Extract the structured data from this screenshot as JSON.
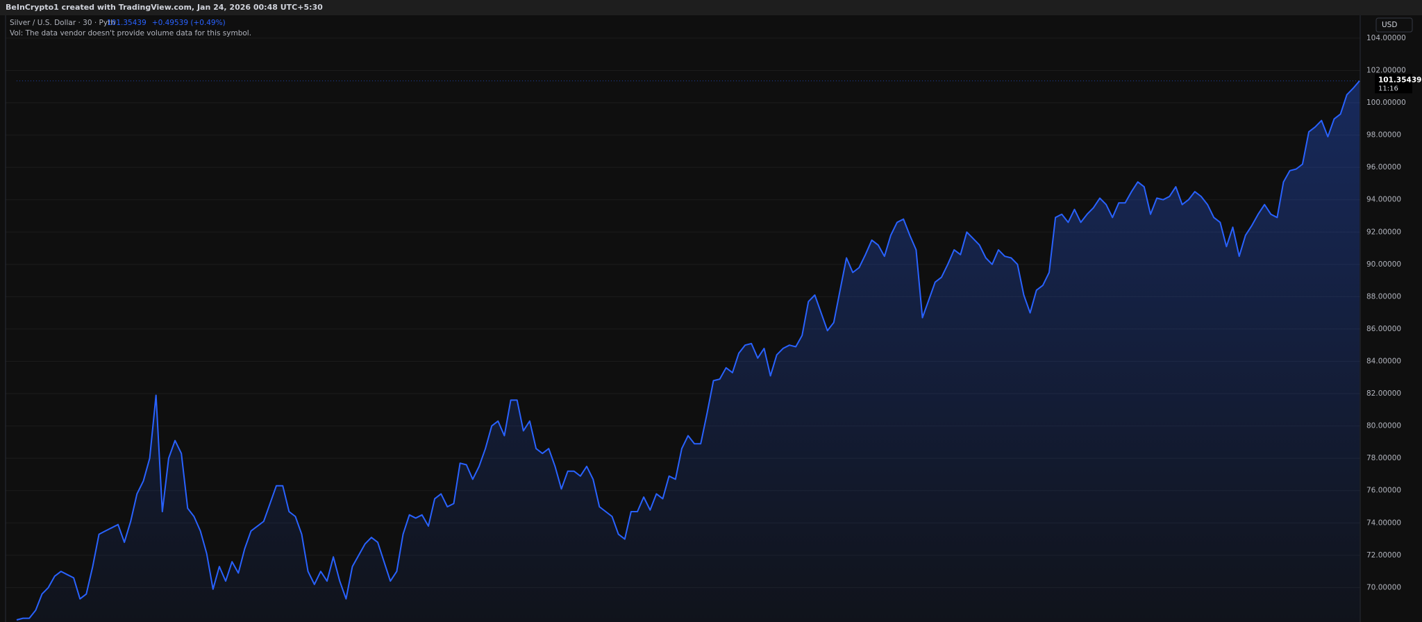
{
  "header": "BeInCrypto1 created with TradingView.com, Jan 24, 2026 00:48 UTC+5:30",
  "chart_data": {
    "type": "area",
    "title": "Silver / U.S. Dollar · 30 · Pyth",
    "last_value": 101.35439,
    "change": "+0.49539 (+0.49%)",
    "note": "Vol: The data vendor doesn't provide volume data for this symbol.",
    "currency": "USD",
    "countdown": "11:16",
    "color": "#2962ff",
    "grid": true,
    "ylim": [
      67.87,
      105.37
    ],
    "yticks": [
      {
        "value": 70,
        "label": "70.00000"
      },
      {
        "value": 72,
        "label": "72.00000"
      },
      {
        "value": 74,
        "label": "74.00000"
      },
      {
        "value": 76,
        "label": "76.00000"
      },
      {
        "value": 78,
        "label": "78.00000"
      },
      {
        "value": 80,
        "label": "80.00000"
      },
      {
        "value": 82,
        "label": "82.00000"
      },
      {
        "value": 84,
        "label": "84.00000"
      },
      {
        "value": 86,
        "label": "86.00000"
      },
      {
        "value": 88,
        "label": "88.00000"
      },
      {
        "value": 90,
        "label": "90.00000"
      },
      {
        "value": 92,
        "label": "92.00000"
      },
      {
        "value": 94,
        "label": "94.00000"
      },
      {
        "value": 96,
        "label": "96.00000"
      },
      {
        "value": 98,
        "label": "98.00000"
      },
      {
        "value": 100,
        "label": "100.00000"
      },
      {
        "value": 102,
        "label": "102.00000"
      },
      {
        "value": 104,
        "label": "104.00000"
      }
    ],
    "values": [
      68.0,
      68.1,
      68.1,
      68.6,
      69.6,
      70.0,
      70.7,
      71.0,
      70.8,
      70.6,
      69.3,
      69.6,
      71.3,
      73.3,
      73.5,
      73.7,
      73.9,
      72.8,
      74.1,
      75.8,
      76.6,
      78.0,
      81.9,
      74.7,
      78.0,
      79.1,
      78.3,
      74.9,
      74.4,
      73.5,
      72.1,
      69.9,
      71.3,
      70.4,
      71.6,
      70.9,
      72.4,
      73.5,
      73.8,
      74.1,
      75.2,
      76.3,
      76.3,
      74.7,
      74.4,
      73.3,
      71.0,
      70.2,
      71.0,
      70.4,
      71.9,
      70.4,
      69.3,
      71.3,
      72.0,
      72.7,
      73.1,
      72.8,
      71.6,
      70.4,
      71.0,
      73.3,
      74.5,
      74.3,
      74.5,
      73.8,
      75.5,
      75.8,
      75.0,
      75.2,
      77.7,
      77.6,
      76.7,
      77.5,
      78.6,
      80.0,
      80.3,
      79.4,
      81.6,
      81.6,
      79.7,
      80.3,
      78.6,
      78.3,
      78.6,
      77.5,
      76.1,
      77.2,
      77.2,
      76.9,
      77.5,
      76.7,
      75.0,
      74.7,
      74.4,
      73.3,
      73.0,
      74.7,
      74.7,
      75.6,
      74.8,
      75.8,
      75.5,
      76.9,
      76.7,
      78.6,
      79.4,
      78.9,
      78.9,
      80.8,
      82.8,
      82.9,
      83.6,
      83.3,
      84.5,
      85.0,
      85.1,
      84.2,
      84.8,
      83.1,
      84.4,
      84.8,
      85.0,
      84.9,
      85.6,
      87.7,
      88.1,
      87.0,
      85.9,
      86.4,
      88.4,
      90.4,
      89.5,
      89.8,
      90.6,
      91.5,
      91.2,
      90.5,
      91.8,
      92.6,
      92.8,
      91.8,
      90.9,
      86.7,
      87.8,
      88.9,
      89.2,
      90.0,
      90.9,
      90.6,
      92.0,
      91.6,
      91.2,
      90.4,
      90.0,
      90.9,
      90.5,
      90.4,
      90.0,
      88.1,
      87.0,
      88.4,
      88.7,
      89.5,
      92.9,
      93.1,
      92.6,
      93.4,
      92.6,
      93.1,
      93.5,
      94.1,
      93.7,
      92.9,
      93.8,
      93.8,
      94.5,
      95.1,
      94.8,
      93.1,
      94.1,
      94.0,
      94.2,
      94.8,
      93.7,
      94.0,
      94.5,
      94.2,
      93.7,
      92.9,
      92.6,
      91.1,
      92.3,
      90.5,
      91.8,
      92.4,
      93.1,
      93.7,
      93.1,
      92.9,
      95.1,
      95.8,
      95.9,
      96.2,
      98.2,
      98.5,
      98.9,
      97.9,
      99.0,
      99.3,
      100.5,
      100.9,
      101.35439
    ]
  }
}
